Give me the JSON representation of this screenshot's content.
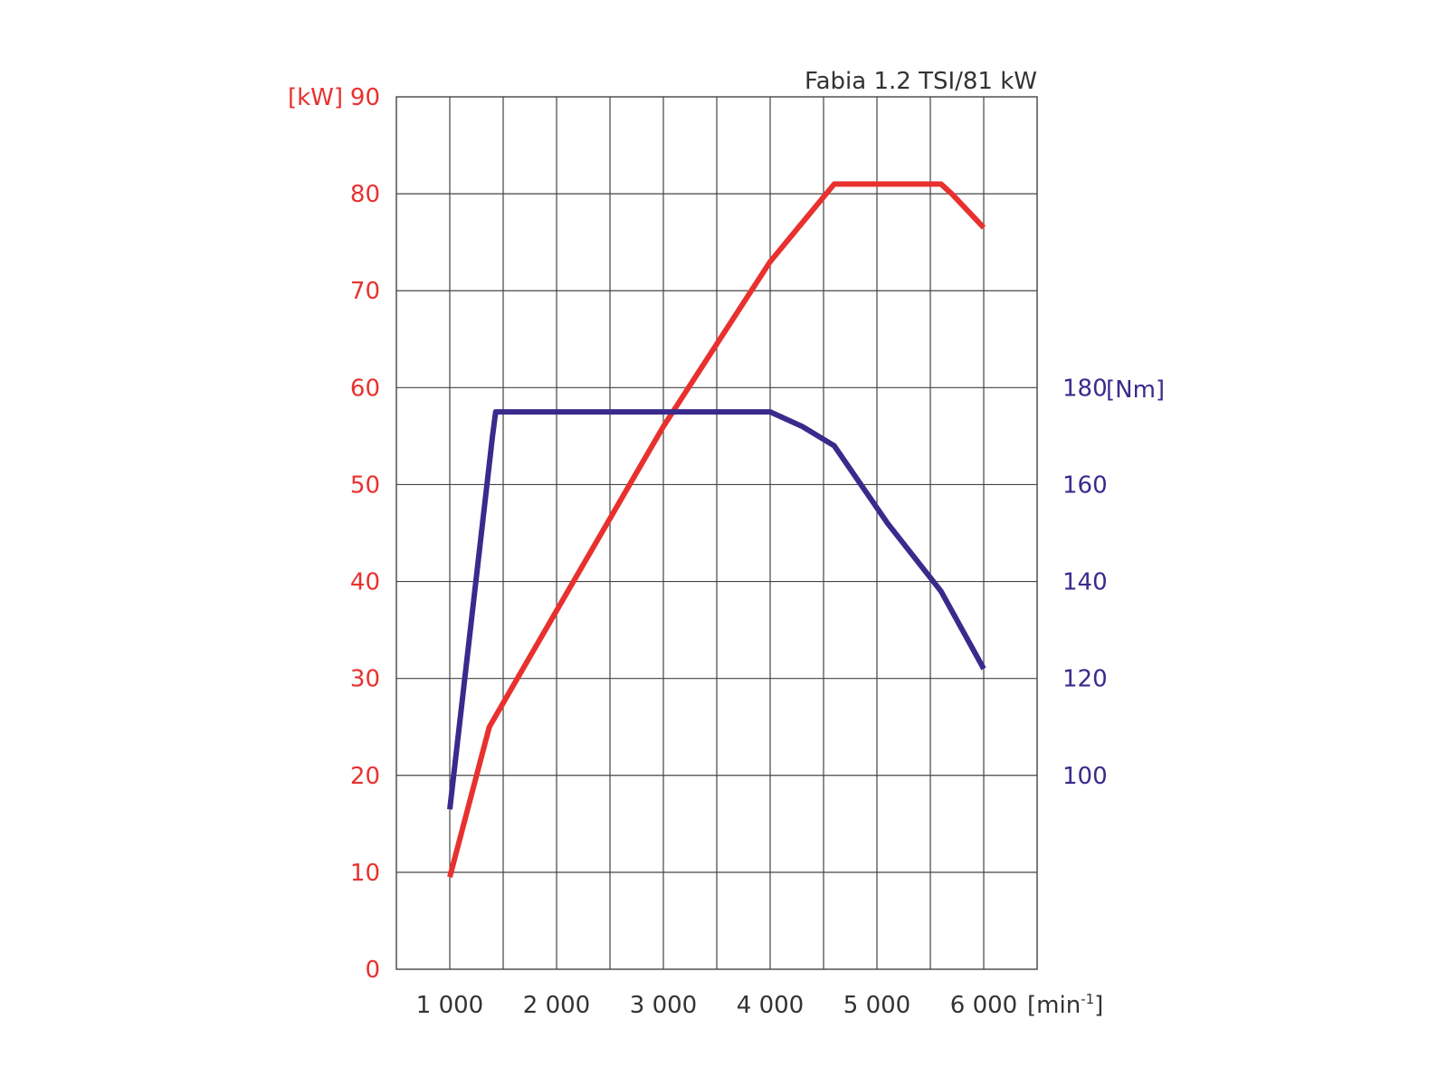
{
  "chart_data": {
    "type": "line",
    "title": "Fabia 1.2 TSI/81 kW",
    "x_label": "[min",
    "x_label_sup": "-1",
    "x_label_close": "]",
    "xlim": [
      500,
      6500
    ],
    "x_grid": [
      1000,
      1500,
      2000,
      2500,
      3000,
      3500,
      4000,
      4500,
      5000,
      5500,
      6000
    ],
    "x_ticks": [
      {
        "value": 1000,
        "label": "1 000"
      },
      {
        "value": 2000,
        "label": "2 000"
      },
      {
        "value": 3000,
        "label": "3 000"
      },
      {
        "value": 4000,
        "label": "4 000"
      },
      {
        "value": 5000,
        "label": "5 000"
      },
      {
        "value": 6000,
        "label": "6 000"
      }
    ],
    "left_axis": {
      "unit": "[kW]",
      "ylim": [
        0,
        90
      ],
      "ticks": [
        0,
        10,
        20,
        30,
        40,
        50,
        60,
        70,
        80,
        90
      ],
      "color": "#e8312f"
    },
    "right_axis": {
      "unit": "[Nm]",
      "ylim": [
        60,
        240
      ],
      "ticks": [
        100,
        120,
        140,
        160,
        180
      ],
      "color": "#3a2a8c"
    },
    "grid": true,
    "series": [
      {
        "axis": "left",
        "color": "#e8312f",
        "x": [
          1000,
          1370,
          2000,
          3000,
          4000,
          4600,
          5600,
          5700,
          6000
        ],
        "y": [
          9.5,
          25,
          37,
          56,
          73,
          81,
          81,
          80,
          76.5
        ]
      },
      {
        "axis": "right",
        "color": "#3a2a8c",
        "x": [
          1000,
          1400,
          1430,
          4000,
          4300,
          4600,
          5100,
          5600,
          6000
        ],
        "y": [
          93,
          170,
          175,
          175,
          172,
          168,
          152,
          138,
          122
        ]
      }
    ]
  }
}
